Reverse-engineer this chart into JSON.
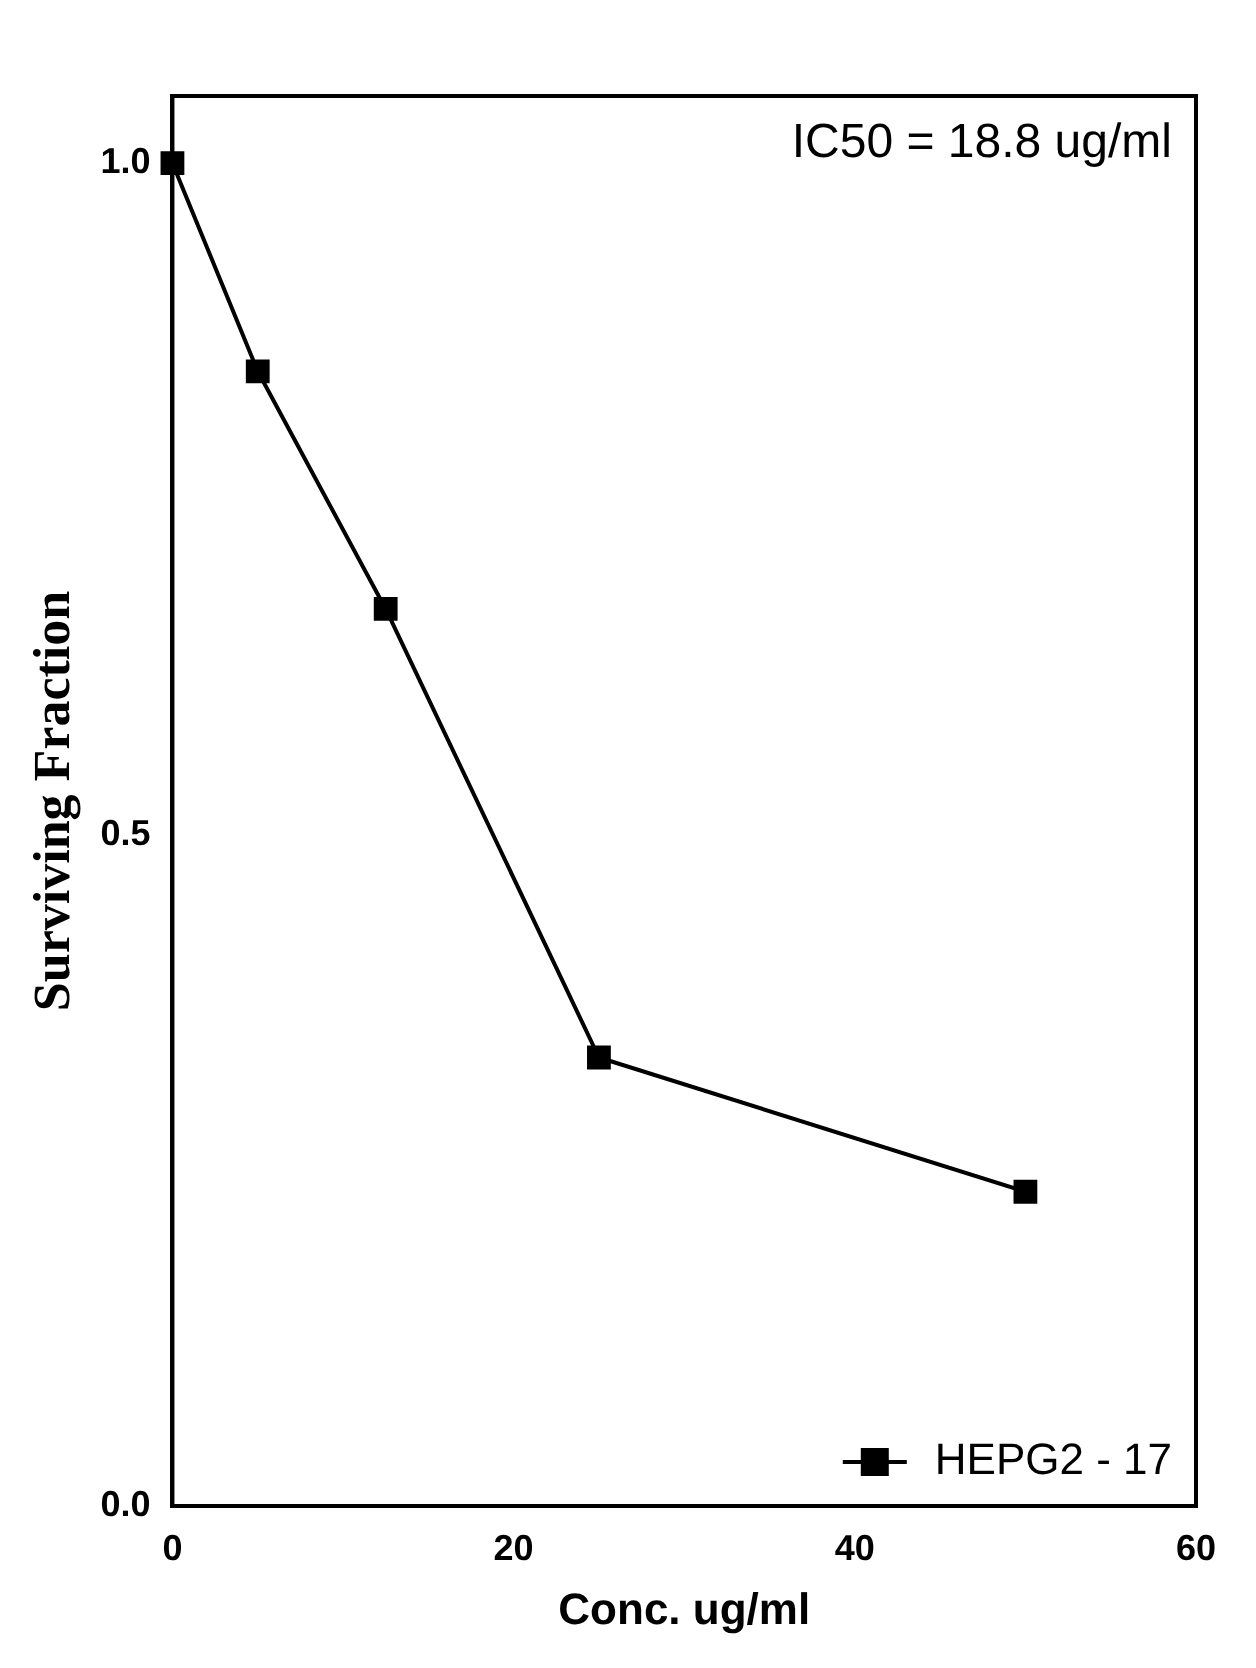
{
  "chart_data": {
    "type": "line",
    "xlabel": "Conc. ug/ml",
    "ylabel": "Surviving Fraction",
    "annotations": [
      "IC50 = 18.8 ug/ml"
    ],
    "x": [
      0,
      5,
      12.5,
      25,
      50
    ],
    "series": [
      {
        "name": "HEPG2 - 17",
        "color": "#000000",
        "values": [
          1.0,
          0.845,
          0.668,
          0.334,
          0.234
        ]
      }
    ],
    "xlim": [
      0,
      60
    ],
    "xticks": [
      0,
      20,
      40,
      60
    ],
    "ylim": [
      0,
      1.05
    ],
    "yticks": [
      {
        "value": 0,
        "label": "0.0"
      },
      {
        "value": 0.5,
        "label": "0.5"
      },
      {
        "value": 1,
        "label": "1.0"
      }
    ],
    "grid": false,
    "legend": "bottom right",
    "marker": "square",
    "line_style": "solid"
  }
}
